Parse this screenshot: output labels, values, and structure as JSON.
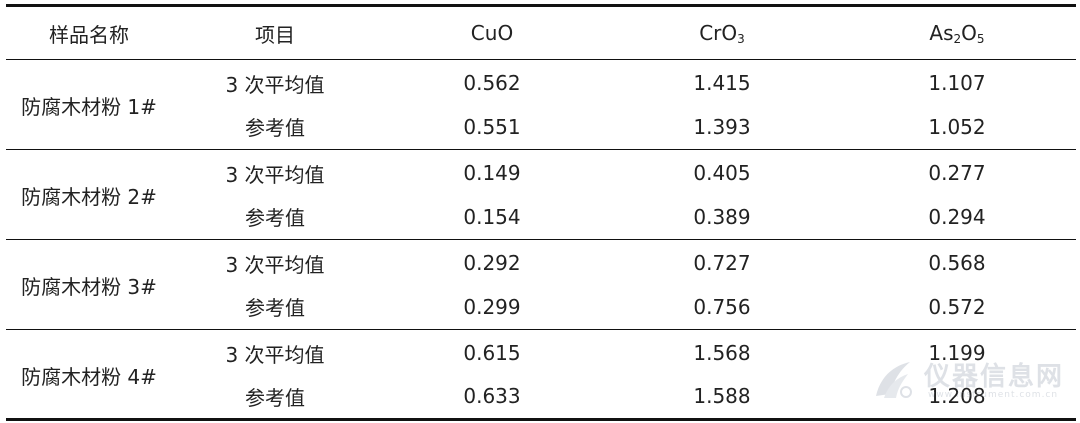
{
  "table": {
    "headers": [
      {
        "text": "样品名称"
      },
      {
        "text": "项目"
      },
      {
        "text": "CuO"
      },
      {
        "base": "CrO",
        "sub": "3"
      },
      {
        "parts": [
          "As",
          "2",
          "O",
          "5"
        ]
      }
    ],
    "groups": [
      {
        "sample": "防腐木材粉 1#",
        "rows": [
          {
            "item": "3 次平均值",
            "cuo": "0.562",
            "cro3": "1.415",
            "as2o5": "1.107"
          },
          {
            "item": "参考值",
            "cuo": "0.551",
            "cro3": "1.393",
            "as2o5": "1.052"
          }
        ]
      },
      {
        "sample": "防腐木材粉 2#",
        "rows": [
          {
            "item": "3 次平均值",
            "cuo": "0.149",
            "cro3": "0.405",
            "as2o5": "0.277"
          },
          {
            "item": "参考值",
            "cuo": "0.154",
            "cro3": "0.389",
            "as2o5": "0.294"
          }
        ]
      },
      {
        "sample": "防腐木材粉 3#",
        "rows": [
          {
            "item": "3 次平均值",
            "cuo": "0.292",
            "cro3": "0.727",
            "as2o5": "0.568"
          },
          {
            "item": "参考值",
            "cuo": "0.299",
            "cro3": "0.756",
            "as2o5": "0.572"
          }
        ]
      },
      {
        "sample": "防腐木材粉 4#",
        "rows": [
          {
            "item": "3 次平均值",
            "cuo": "0.615",
            "cro3": "1.568",
            "as2o5": "1.199"
          },
          {
            "item": "参考值",
            "cuo": "0.633",
            "cro3": "1.588",
            "as2o5": "1.208"
          }
        ]
      }
    ]
  },
  "watermark": {
    "text": "仪器信息网",
    "sub": "www.instrument.com.cn",
    "icon": "instrument-logo-icon",
    "color": "#8a96a8"
  }
}
